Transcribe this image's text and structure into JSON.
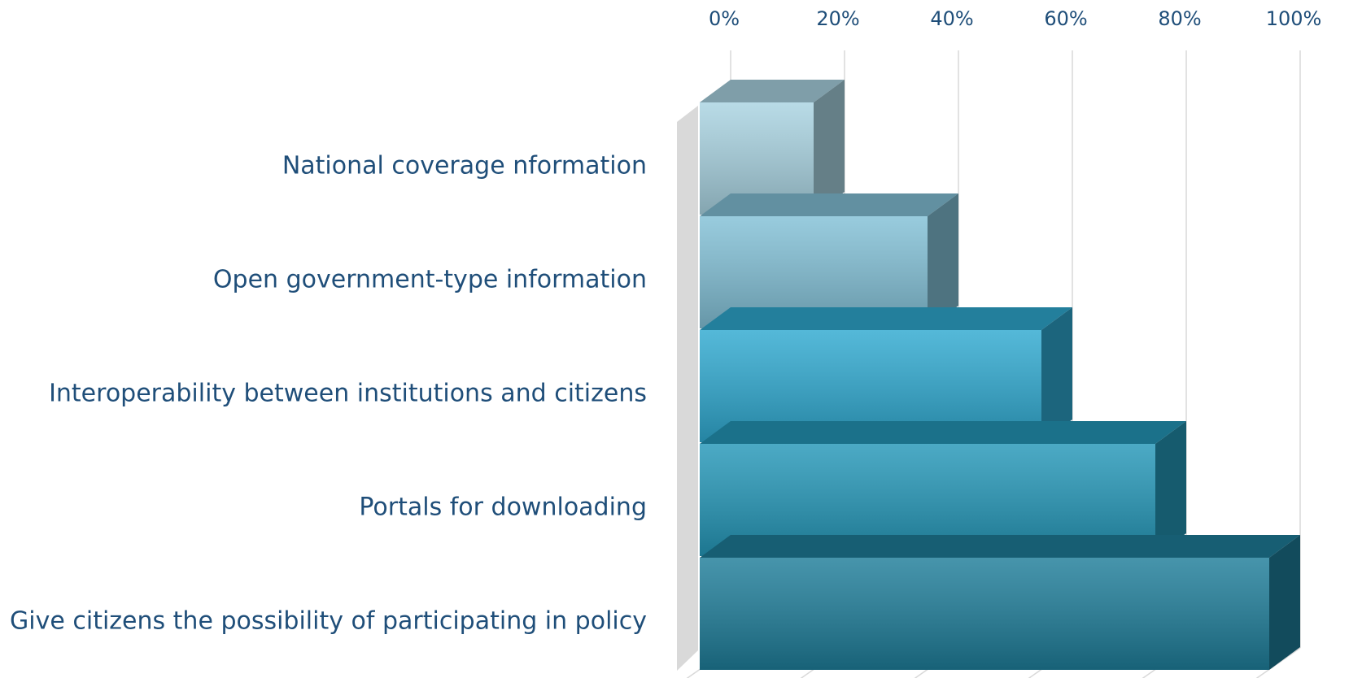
{
  "chart_data": {
    "type": "bar3d_horizontal",
    "categories": [
      "National coverage nformation",
      "Open government-type information",
      "Interoperability  between institutions and citizens",
      "Portals for downloading",
      "Give citizens the possibility of participating in policy"
    ],
    "values": [
      20,
      40,
      60,
      80,
      100
    ],
    "colors": [
      "#a9d3e1",
      "#82c0d6",
      "#2fa9d0",
      "#2497b8",
      "#1e7d99"
    ],
    "xlim": [
      0,
      100
    ],
    "xticks": [
      {
        "value": 0,
        "label": "0%"
      },
      {
        "value": 20,
        "label": "20%"
      },
      {
        "value": 40,
        "label": "40%"
      },
      {
        "value": 60,
        "label": "60%"
      },
      {
        "value": 80,
        "label": "80%"
      },
      {
        "value": 100,
        "label": "100%"
      }
    ],
    "grid": true
  }
}
